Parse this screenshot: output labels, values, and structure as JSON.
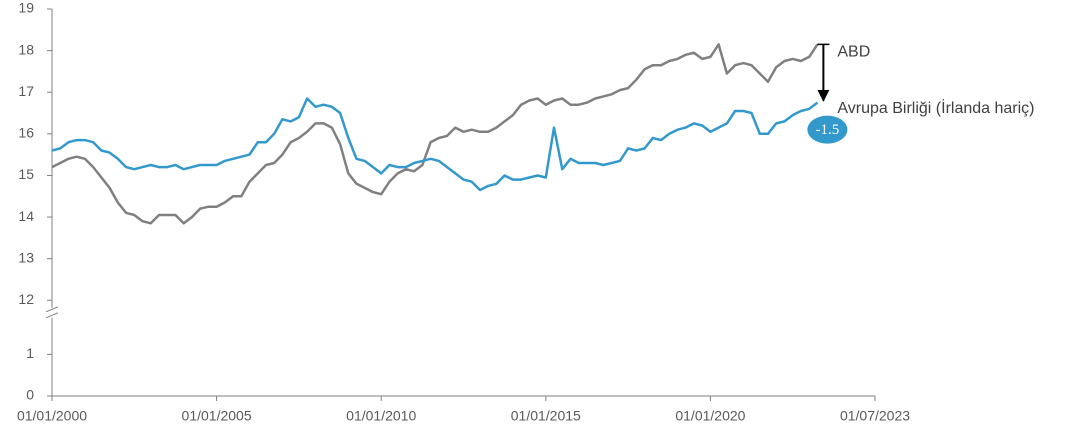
{
  "chart_data": {
    "type": "line",
    "categories": [
      "01/01/2000",
      null,
      null,
      null,
      null,
      null,
      null,
      null,
      null,
      null,
      null,
      null,
      null,
      null,
      null,
      null,
      null,
      null,
      null,
      null,
      "01/01/2005",
      null,
      null,
      null,
      null,
      null,
      null,
      null,
      null,
      null,
      null,
      null,
      null,
      null,
      null,
      null,
      null,
      null,
      null,
      null,
      "01/01/2010",
      null,
      null,
      null,
      null,
      null,
      null,
      null,
      null,
      null,
      null,
      null,
      null,
      null,
      null,
      null,
      null,
      null,
      null,
      null,
      "01/01/2015",
      null,
      null,
      null,
      null,
      null,
      null,
      null,
      null,
      null,
      null,
      null,
      null,
      null,
      null,
      null,
      null,
      null,
      null,
      null,
      "01/01/2020",
      null,
      null,
      null,
      null,
      null,
      null,
      null,
      null,
      null,
      null,
      null,
      null,
      null,
      null,
      null,
      null,
      null,
      null,
      null,
      "01/07/2023"
    ],
    "series": [
      {
        "name": "ABD",
        "color": "#808080",
        "values": [
          15.2,
          15.3,
          15.4,
          15.45,
          15.4,
          15.2,
          14.95,
          14.7,
          14.35,
          14.1,
          14.05,
          13.9,
          13.85,
          14.05,
          14.05,
          14.05,
          13.85,
          14.0,
          14.2,
          14.25,
          14.25,
          14.35,
          14.5,
          14.5,
          14.85,
          15.05,
          15.25,
          15.3,
          15.5,
          15.8,
          15.9,
          16.05,
          16.25,
          16.25,
          16.15,
          15.75,
          15.05,
          14.8,
          14.7,
          14.6,
          14.55,
          14.85,
          15.05,
          15.15,
          15.1,
          15.25,
          15.8,
          15.9,
          15.95,
          16.15,
          16.05,
          16.1,
          16.05,
          16.05,
          16.15,
          16.3,
          16.45,
          16.7,
          16.8,
          16.85,
          16.7,
          16.8,
          16.85,
          16.7,
          16.7,
          16.75,
          16.85,
          16.9,
          16.95,
          17.05,
          17.1,
          17.3,
          17.55,
          17.65,
          17.65,
          17.75,
          17.8,
          17.9,
          17.95,
          17.8,
          17.85,
          18.15,
          17.45,
          17.65,
          17.7,
          17.65,
          17.45,
          17.25,
          17.6,
          17.75,
          17.8,
          17.75,
          17.85,
          18.15,
          null,
          null,
          null,
          null,
          null,
          null,
          null
        ]
      },
      {
        "name": "Avrupa Birliği (İrlanda hariç)",
        "color": "#3399cc",
        "values": [
          15.6,
          15.65,
          15.8,
          15.85,
          15.85,
          15.8,
          15.6,
          15.55,
          15.4,
          15.2,
          15.15,
          15.2,
          15.25,
          15.2,
          15.2,
          15.25,
          15.15,
          15.2,
          15.25,
          15.25,
          15.25,
          15.35,
          15.4,
          15.45,
          15.5,
          15.8,
          15.8,
          16.0,
          16.35,
          16.3,
          16.4,
          16.85,
          16.65,
          16.7,
          16.65,
          16.5,
          15.9,
          15.4,
          15.35,
          15.2,
          15.05,
          15.25,
          15.2,
          15.2,
          15.3,
          15.35,
          15.4,
          15.35,
          15.2,
          15.05,
          14.9,
          14.85,
          14.65,
          14.75,
          14.8,
          15.0,
          14.9,
          14.9,
          14.95,
          15.0,
          14.95,
          16.15,
          15.15,
          15.4,
          15.3,
          15.3,
          15.3,
          15.25,
          15.3,
          15.35,
          15.65,
          15.6,
          15.65,
          15.9,
          15.85,
          16.0,
          16.1,
          16.15,
          16.25,
          16.2,
          16.05,
          16.15,
          16.25,
          16.55,
          16.55,
          16.5,
          16.0,
          16.0,
          16.25,
          16.3,
          16.45,
          16.55,
          16.6,
          16.75,
          null,
          null,
          null,
          null,
          null,
          null,
          null
        ]
      }
    ],
    "difference_label": -1.5,
    "ylim": [
      0,
      19
    ],
    "axis_break": [
      2,
      11.7
    ],
    "yticks": [
      0,
      1,
      12,
      13,
      14,
      15,
      16,
      17,
      18,
      19
    ]
  }
}
